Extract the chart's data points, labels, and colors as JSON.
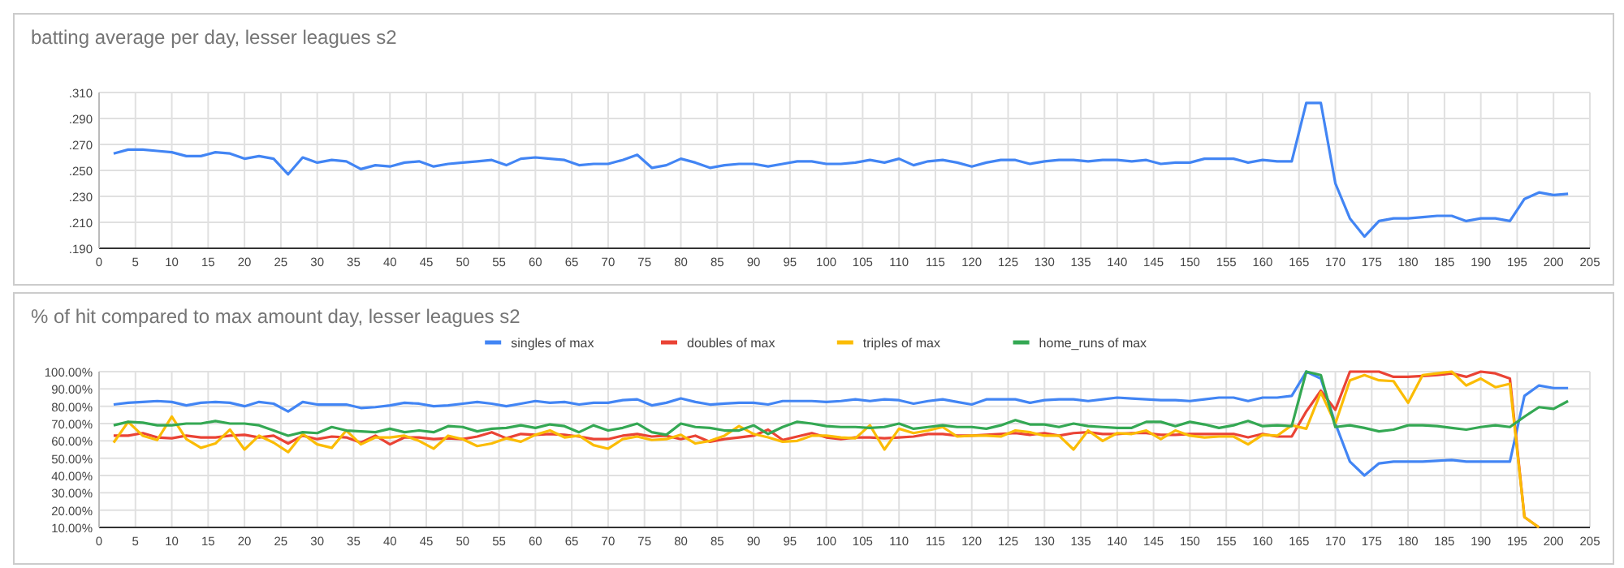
{
  "chart_data": [
    {
      "type": "line",
      "title": "batting average per day, lesser leagues s2",
      "x": [
        2,
        4,
        6,
        8,
        10,
        12,
        14,
        16,
        18,
        20,
        22,
        24,
        26,
        28,
        30,
        32,
        34,
        36,
        38,
        40,
        42,
        44,
        46,
        48,
        50,
        52,
        54,
        56,
        58,
        60,
        62,
        64,
        66,
        68,
        70,
        72,
        74,
        76,
        78,
        80,
        82,
        84,
        86,
        88,
        90,
        92,
        94,
        96,
        98,
        100,
        102,
        104,
        106,
        108,
        110,
        112,
        114,
        116,
        118,
        120,
        122,
        124,
        126,
        128,
        130,
        132,
        134,
        136,
        138,
        140,
        142,
        144,
        146,
        148,
        150,
        152,
        154,
        156,
        158,
        160,
        162,
        164,
        166,
        168,
        170,
        172,
        174,
        176,
        178,
        180,
        182,
        184,
        186,
        188,
        190,
        192,
        194,
        196,
        198,
        200,
        202
      ],
      "series": [
        {
          "color": "#4285f4",
          "values": [
            0.263,
            0.266,
            0.266,
            0.265,
            0.264,
            0.261,
            0.261,
            0.264,
            0.263,
            0.259,
            0.261,
            0.259,
            0.247,
            0.26,
            0.256,
            0.258,
            0.257,
            0.251,
            0.254,
            0.253,
            0.256,
            0.257,
            0.253,
            0.255,
            0.256,
            0.257,
            0.258,
            0.254,
            0.259,
            0.26,
            0.259,
            0.258,
            0.254,
            0.255,
            0.255,
            0.258,
            0.262,
            0.252,
            0.254,
            0.259,
            0.256,
            0.252,
            0.254,
            0.255,
            0.255,
            0.253,
            0.255,
            0.257,
            0.257,
            0.255,
            0.255,
            0.256,
            0.258,
            0.256,
            0.259,
            0.254,
            0.257,
            0.258,
            0.256,
            0.253,
            0.256,
            0.258,
            0.258,
            0.255,
            0.257,
            0.258,
            0.258,
            0.257,
            0.258,
            0.258,
            0.257,
            0.258,
            0.255,
            0.256,
            0.256,
            0.259,
            0.259,
            0.259,
            0.256,
            0.258,
            0.257,
            0.257,
            0.302,
            0.302,
            0.24,
            0.213,
            0.199,
            0.211,
            0.213,
            0.213,
            0.214,
            0.215,
            0.215,
            0.211,
            0.213,
            0.213,
            0.211,
            0.228,
            0.233,
            0.231,
            0.232
          ]
        }
      ],
      "xlim": [
        0,
        205
      ],
      "xticks": [
        0,
        5,
        10,
        15,
        20,
        25,
        30,
        35,
        40,
        45,
        50,
        55,
        60,
        65,
        70,
        75,
        80,
        85,
        90,
        95,
        100,
        105,
        110,
        115,
        120,
        125,
        130,
        135,
        140,
        145,
        150,
        155,
        160,
        165,
        170,
        175,
        180,
        185,
        190,
        195,
        200,
        205
      ],
      "ylim": [
        0.19,
        0.31
      ],
      "yticks": [
        {
          "value": 0.19,
          "label": ".190"
        },
        {
          "value": 0.21,
          "label": ".210"
        },
        {
          "value": 0.23,
          "label": ".230"
        },
        {
          "value": 0.25,
          "label": ".250"
        },
        {
          "value": 0.27,
          "label": ".270"
        },
        {
          "value": 0.29,
          "label": ".290"
        },
        {
          "value": 0.31,
          "label": ".310"
        }
      ],
      "grid": true
    },
    {
      "type": "line",
      "title": "% of hit compared to max amount day, lesser leagues s2",
      "x": [
        2,
        4,
        6,
        8,
        10,
        12,
        14,
        16,
        18,
        20,
        22,
        24,
        26,
        28,
        30,
        32,
        34,
        36,
        38,
        40,
        42,
        44,
        46,
        48,
        50,
        52,
        54,
        56,
        58,
        60,
        62,
        64,
        66,
        68,
        70,
        72,
        74,
        76,
        78,
        80,
        82,
        84,
        86,
        88,
        90,
        92,
        94,
        96,
        98,
        100,
        102,
        104,
        106,
        108,
        110,
        112,
        114,
        116,
        118,
        120,
        122,
        124,
        126,
        128,
        130,
        132,
        134,
        136,
        138,
        140,
        142,
        144,
        146,
        148,
        150,
        152,
        154,
        156,
        158,
        160,
        162,
        164,
        166,
        168,
        170,
        172,
        174,
        176,
        178,
        180,
        182,
        184,
        186,
        188,
        190,
        192,
        194,
        196,
        198,
        200,
        202
      ],
      "series": [
        {
          "name": "singles of max",
          "color": "#4285f4",
          "values": [
            81,
            82,
            82.5,
            83,
            82.5,
            80.5,
            82,
            82.5,
            82,
            80,
            82.5,
            81.5,
            77,
            82.5,
            81,
            81,
            81,
            79,
            79.5,
            80.5,
            82,
            81.5,
            80,
            80.5,
            81.5,
            82.5,
            81.5,
            80,
            81.5,
            83,
            82,
            82.5,
            81,
            82,
            82,
            83.5,
            84,
            80.5,
            82,
            84.5,
            82.5,
            81,
            81.5,
            82,
            82,
            81,
            83,
            83,
            83,
            82.5,
            83,
            84,
            83,
            84,
            83.5,
            81.5,
            83,
            84,
            82.5,
            81,
            84,
            84,
            84,
            82,
            83.5,
            84,
            84,
            83,
            84,
            85,
            84.5,
            84,
            83.5,
            83.5,
            83,
            84,
            85,
            85,
            83,
            85,
            85,
            86,
            100,
            96,
            70,
            48,
            40,
            47,
            48,
            48,
            48,
            48.5,
            49,
            48,
            48,
            48,
            48,
            86,
            92,
            90.5,
            90.5
          ]
        },
        {
          "name": "doubles of max",
          "color": "#ea4335",
          "values": [
            63,
            63,
            64.5,
            62,
            61.5,
            63,
            62,
            62,
            63,
            63.5,
            62,
            63,
            58.5,
            63,
            61,
            62.5,
            62,
            59,
            63,
            58,
            62,
            62,
            61,
            61.5,
            61,
            62.5,
            65,
            61.5,
            64,
            63.5,
            64,
            63.5,
            62.5,
            61,
            61,
            63,
            64,
            62.5,
            63,
            61,
            63,
            59.5,
            61,
            62,
            63,
            66.5,
            60.5,
            62.5,
            64.5,
            62,
            61,
            62,
            62,
            61.5,
            62,
            62.5,
            64,
            64,
            63,
            63,
            63.5,
            64,
            64.5,
            63.5,
            64.5,
            63,
            64.5,
            65,
            64,
            64,
            64.5,
            64.5,
            63.5,
            63.5,
            64,
            64,
            64,
            64,
            62,
            64,
            62.5,
            62.5,
            77,
            89,
            78,
            100,
            100,
            100,
            97,
            97,
            97.5,
            98,
            99,
            97,
            100,
            99,
            96,
            16,
            10,
            null,
            null
          ]
        },
        {
          "name": "triples of max",
          "color": "#fbbc04",
          "values": [
            59,
            71,
            63,
            60.5,
            74,
            61,
            56,
            58.5,
            66.5,
            55,
            63,
            59,
            53.5,
            64,
            58,
            56,
            66,
            58,
            62,
            62,
            63,
            60,
            55.5,
            63,
            61,
            57,
            58.5,
            61.5,
            59.5,
            63.5,
            66,
            62,
            63,
            57.5,
            55.5,
            61,
            62.5,
            60.5,
            61,
            63.5,
            58.5,
            60,
            63,
            68.5,
            64,
            62,
            59.5,
            60,
            63,
            63,
            62,
            61.5,
            69,
            55,
            67,
            64.5,
            66,
            68,
            62.5,
            63,
            63,
            62.5,
            66,
            65,
            63,
            63,
            55,
            66,
            60,
            64.5,
            64,
            66,
            61,
            66,
            63,
            62,
            62.5,
            62.5,
            58,
            63.5,
            63,
            69,
            67,
            88,
            70,
            95,
            98,
            95,
            94.5,
            82,
            98,
            99,
            100,
            92,
            96,
            91,
            93,
            16,
            10,
            null,
            null
          ]
        },
        {
          "name": "home_runs of max",
          "color": "#34a853",
          "values": [
            69,
            71,
            70.5,
            69,
            69,
            70,
            70,
            71.5,
            70,
            70,
            69,
            66,
            63,
            65,
            64.5,
            68,
            66,
            65.5,
            65,
            67,
            65,
            66,
            65,
            68.5,
            68,
            65.5,
            67,
            67.5,
            69,
            67.5,
            69.5,
            68.5,
            65,
            69,
            66,
            67.5,
            70,
            65,
            63.5,
            70,
            68,
            67.5,
            66,
            66,
            69,
            64,
            68,
            71,
            70,
            68.5,
            68,
            68,
            67.5,
            68,
            70,
            67,
            68,
            69,
            68,
            68,
            67,
            69,
            72,
            69.5,
            69.5,
            68,
            70,
            68.5,
            68,
            67.5,
            67.5,
            71,
            71,
            68.5,
            71,
            69.5,
            67.5,
            69,
            71.5,
            68.5,
            69,
            68.5,
            100,
            98,
            68,
            69,
            67.5,
            65.5,
            66.5,
            69,
            69,
            68.5,
            67.5,
            66.5,
            68,
            69,
            68,
            74,
            79.5,
            78.5,
            83
          ]
        }
      ],
      "xlim": [
        0,
        205
      ],
      "xticks": [
        0,
        5,
        10,
        15,
        20,
        25,
        30,
        35,
        40,
        45,
        50,
        55,
        60,
        65,
        70,
        75,
        80,
        85,
        90,
        95,
        100,
        105,
        110,
        115,
        120,
        125,
        130,
        135,
        140,
        145,
        150,
        155,
        160,
        165,
        170,
        175,
        180,
        185,
        190,
        195,
        200,
        205
      ],
      "ylim": [
        10,
        100
      ],
      "yticks": [
        {
          "value": 10,
          "label": "10.00%"
        },
        {
          "value": 20,
          "label": "20.00%"
        },
        {
          "value": 30,
          "label": "30.00%"
        },
        {
          "value": 40,
          "label": "40.00%"
        },
        {
          "value": 50,
          "label": "50.00%"
        },
        {
          "value": 60,
          "label": "60.00%"
        },
        {
          "value": 70,
          "label": "70.00%"
        },
        {
          "value": 80,
          "label": "80.00%"
        },
        {
          "value": 90,
          "label": "90.00%"
        },
        {
          "value": 100,
          "label": "100.00%"
        }
      ],
      "grid": true,
      "legend": "top"
    }
  ]
}
